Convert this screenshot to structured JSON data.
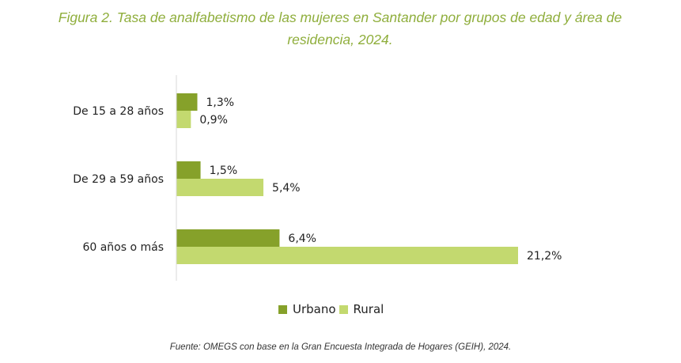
{
  "chart_data": {
    "type": "bar",
    "orientation": "horizontal",
    "title": "Figura 2. Tasa de analfabetismo de las mujeres en Santander por grupos de edad y área de residencia, 2024.",
    "categories": [
      "De 15 a 28 años",
      "De 29 a 59 años",
      "60 años o más"
    ],
    "series": [
      {
        "name": "Urbano",
        "values": [
          1.3,
          1.5,
          6.4
        ],
        "labels": [
          "1,3%",
          "1,5%",
          "6,4%"
        ],
        "color": "#86a12a"
      },
      {
        "name": "Rural",
        "values": [
          0.9,
          5.4,
          21.2
        ],
        "labels": [
          "0,9%",
          "5,4%",
          "21,2%"
        ],
        "color": "#c3d96f"
      }
    ],
    "xlim": [
      0,
      21.2
    ],
    "grid": false,
    "legend_position": "bottom",
    "source": "Fuente: OMEGS con base en la Gran Encuesta Integrada de Hogares (GEIH), 2024."
  }
}
